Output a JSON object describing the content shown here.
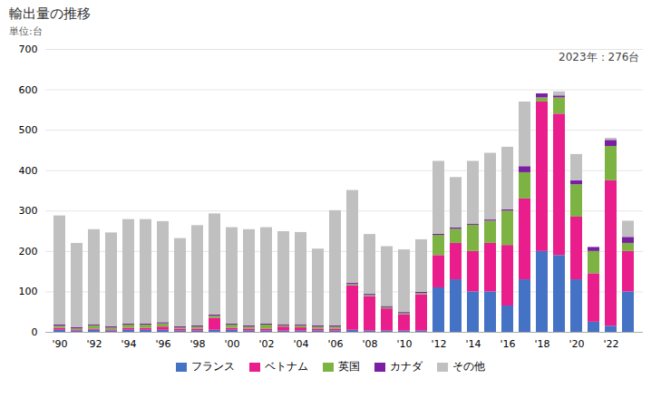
{
  "chart_data": {
    "type": "bar",
    "stacked": true,
    "title": "輸出量の推移",
    "subtitle": "単位:台",
    "annotation": "2023年：276台",
    "categories": [
      "'90",
      null,
      "'92",
      null,
      "'94",
      null,
      "'96",
      null,
      "'98",
      null,
      "'00",
      null,
      "'02",
      null,
      "'04",
      null,
      "'06",
      null,
      "'08",
      null,
      "'10",
      null,
      "'12",
      null,
      "'14",
      null,
      "'16",
      null,
      "'18",
      null,
      "'20",
      null,
      "'22",
      null
    ],
    "series": [
      {
        "name": "フランス",
        "color": "#4472C4",
        "values": [
          5,
          3,
          5,
          3,
          5,
          5,
          5,
          3,
          3,
          5,
          5,
          3,
          3,
          3,
          3,
          3,
          3,
          5,
          3,
          3,
          3,
          3,
          110,
          130,
          100,
          100,
          65,
          130,
          200,
          190,
          130,
          25,
          15,
          100
        ]
      },
      {
        "name": "ベトナム",
        "color": "#E91E8C",
        "values": [
          5,
          3,
          3,
          3,
          5,
          5,
          8,
          5,
          5,
          30,
          5,
          5,
          5,
          10,
          8,
          5,
          5,
          110,
          85,
          55,
          40,
          90,
          80,
          90,
          100,
          120,
          150,
          200,
          370,
          350,
          155,
          120,
          360,
          100
        ]
      },
      {
        "name": "英国",
        "color": "#7CB342",
        "values": [
          5,
          3,
          8,
          5,
          8,
          8,
          8,
          3,
          5,
          5,
          8,
          5,
          10,
          3,
          5,
          5,
          5,
          3,
          3,
          3,
          3,
          3,
          50,
          35,
          65,
          55,
          85,
          65,
          10,
          40,
          80,
          55,
          85,
          20
        ]
      },
      {
        "name": "カナダ",
        "color": "#7B1FA2",
        "values": [
          3,
          3,
          3,
          3,
          3,
          3,
          3,
          3,
          3,
          3,
          3,
          3,
          3,
          3,
          3,
          3,
          3,
          3,
          3,
          3,
          3,
          3,
          3,
          3,
          3,
          3,
          3,
          15,
          10,
          5,
          10,
          10,
          15,
          15
        ]
      },
      {
        "name": "その他",
        "color": "#C0C0C0",
        "values": [
          270,
          208,
          235,
          232,
          258,
          258,
          250,
          218,
          248,
          250,
          238,
          238,
          238,
          230,
          228,
          190,
          285,
          230,
          148,
          148,
          155,
          130,
          180,
          125,
          155,
          165,
          155,
          160,
          0,
          10,
          65,
          0,
          5,
          40
        ]
      }
    ],
    "ylim": [
      0,
      700
    ],
    "yticks": [
      0,
      100,
      200,
      300,
      400,
      500,
      600,
      700
    ],
    "grid": true,
    "legend": "bottom"
  }
}
